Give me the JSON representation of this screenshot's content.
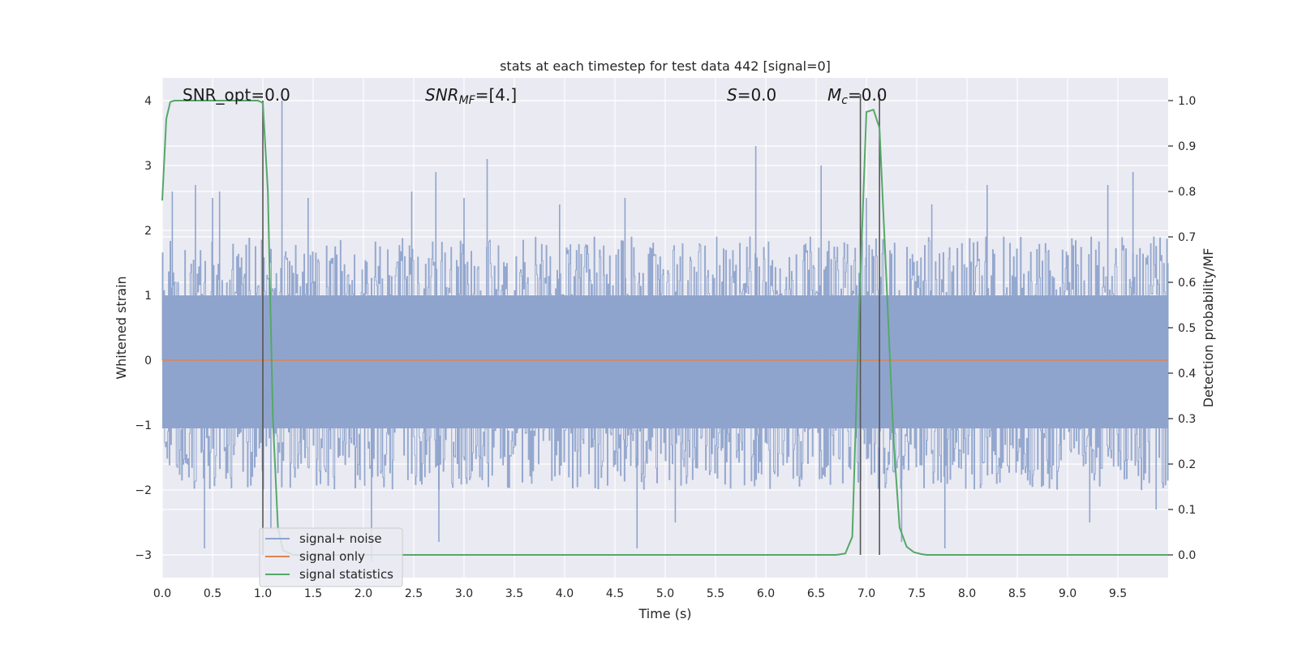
{
  "chart_data": {
    "type": "line",
    "title": "stats at each timestep for test data 442 [signal=0]",
    "xlabel": "Time (s)",
    "ylabel_left": "Whitened strain",
    "ylabel_right": "Detection probability/MF",
    "xlim": [
      0.0,
      10.0
    ],
    "ylim_left": [
      -3.35,
      4.35
    ],
    "ylim_right": [
      -0.05,
      1.05
    ],
    "x_ticks": [
      "0.0",
      "0.5",
      "1.0",
      "1.5",
      "2.0",
      "2.5",
      "3.0",
      "3.5",
      "4.0",
      "4.5",
      "5.0",
      "5.5",
      "6.0",
      "6.5",
      "7.0",
      "7.5",
      "8.0",
      "8.5",
      "9.0",
      "9.5"
    ],
    "x_tick_values": [
      0.0,
      0.5,
      1.0,
      1.5,
      2.0,
      2.5,
      3.0,
      3.5,
      4.0,
      4.5,
      5.0,
      5.5,
      6.0,
      6.5,
      7.0,
      7.5,
      8.0,
      8.5,
      9.0,
      9.5
    ],
    "y_left_ticks": [
      "−3",
      "−2",
      "−1",
      "0",
      "1",
      "2",
      "3",
      "4"
    ],
    "y_left_tick_values": [
      -3,
      -2,
      -1,
      0,
      1,
      2,
      3,
      4
    ],
    "y_right_ticks": [
      "0.0",
      "0.1",
      "0.2",
      "0.3",
      "0.4",
      "0.5",
      "0.6",
      "0.7",
      "0.8",
      "0.9",
      "1.0"
    ],
    "y_right_tick_values": [
      0.0,
      0.1,
      0.2,
      0.3,
      0.4,
      0.5,
      0.6,
      0.7,
      0.8,
      0.9,
      1.0
    ],
    "grid": true,
    "legend_position": "lower-left",
    "series": [
      {
        "name": "signal+ noise",
        "axis": "left",
        "color": "#8fa4cc",
        "description_samples": [
          [
            0.1,
            2.6
          ],
          [
            0.33,
            2.7
          ],
          [
            0.5,
            2.5
          ],
          [
            0.57,
            2.6
          ],
          [
            1.19,
            4.0
          ],
          [
            1.45,
            2.5
          ],
          [
            2.48,
            2.6
          ],
          [
            2.72,
            2.9
          ],
          [
            3.0,
            2.5
          ],
          [
            3.23,
            3.1
          ],
          [
            3.95,
            2.4
          ],
          [
            4.6,
            2.5
          ],
          [
            5.9,
            3.3
          ],
          [
            6.55,
            3.0
          ],
          [
            7.0,
            2.5
          ],
          [
            7.65,
            2.4
          ],
          [
            8.2,
            2.7
          ],
          [
            9.4,
            2.7
          ],
          [
            9.65,
            2.9
          ],
          [
            0.42,
            -2.9
          ],
          [
            1.08,
            -2.6
          ],
          [
            2.08,
            -3.1
          ],
          [
            2.75,
            -2.8
          ],
          [
            4.72,
            -2.9
          ],
          [
            5.1,
            -2.5
          ],
          [
            7.35,
            -2.8
          ],
          [
            7.78,
            -2.9
          ],
          [
            9.22,
            -2.5
          ],
          [
            9.88,
            -2.3
          ]
        ]
      },
      {
        "name": "signal only",
        "axis": "left",
        "color": "#dd8452",
        "x": [
          0.0,
          10.0
        ],
        "y": [
          0.0,
          0.0
        ]
      },
      {
        "name": "signal statistics",
        "axis": "right",
        "color": "#55a868",
        "x": [
          0.0,
          0.04,
          0.08,
          0.12,
          0.5,
          0.95,
          1.0,
          1.05,
          1.1,
          1.15,
          1.2,
          1.3,
          2.0,
          4.0,
          6.0,
          6.7,
          6.79,
          6.86,
          6.93,
          7.0,
          7.07,
          7.13,
          7.2,
          7.27,
          7.33,
          7.4,
          7.47,
          7.54,
          7.6,
          7.7,
          8.0,
          9.0,
          10.0
        ],
        "y": [
          0.78,
          0.96,
          0.997,
          1.0,
          1.0,
          1.0,
          0.995,
          0.8,
          0.3,
          0.06,
          0.01,
          0.0,
          0.0,
          0.0,
          0.0,
          0.0,
          0.003,
          0.04,
          0.55,
          0.975,
          0.98,
          0.94,
          0.6,
          0.25,
          0.06,
          0.018,
          0.006,
          0.002,
          0.0,
          0.0,
          0.0,
          0.0,
          0.0
        ]
      }
    ],
    "vertical_markers": [
      {
        "x": 1.0,
        "axis": "left",
        "y0": -3.0,
        "y1": 4.0,
        "color": "#555555"
      },
      {
        "x": 6.94,
        "axis": "left",
        "y0": -3.0,
        "y1": 4.1,
        "color": "#555555"
      },
      {
        "x": 7.13,
        "axis": "left",
        "y0": -3.0,
        "y1": 4.1,
        "color": "#555555"
      }
    ],
    "annotations": [
      {
        "key": "snr_opt",
        "text": "SNR_opt=0.0",
        "x": 0.19,
        "y": 4.04
      },
      {
        "key": "snr_mf",
        "text": "SNR_MF=[4.]",
        "x": 2.6,
        "y": 4.04
      },
      {
        "key": "s",
        "text": "S=0.0",
        "x": 5.6,
        "y": 4.04
      },
      {
        "key": "mc",
        "text": "M_c=0.0",
        "x": 6.6,
        "y": 4.04
      }
    ]
  },
  "legend": {
    "items": [
      {
        "label": "signal+ noise",
        "color": "#8fa4cc"
      },
      {
        "label": "signal only",
        "color": "#dd8452"
      },
      {
        "label": "signal statistics",
        "color": "#55a868"
      }
    ]
  },
  "annot_text": {
    "snr_opt": "SNR_opt=0.0",
    "snr_mf_base": "SNR",
    "snr_mf_sub": "MF",
    "snr_mf_rest": "=[4.]",
    "s_base": "S",
    "s_rest": "=0.0",
    "mc_base": "M",
    "mc_sub": "c",
    "mc_rest": "=0.0"
  },
  "colors": {
    "plot_background": "#eaeaf2",
    "grid": "#ffffff",
    "noise": "#8fa4cc",
    "signal_only": "#dd8452",
    "statistics": "#55a868",
    "marker": "#555555"
  }
}
